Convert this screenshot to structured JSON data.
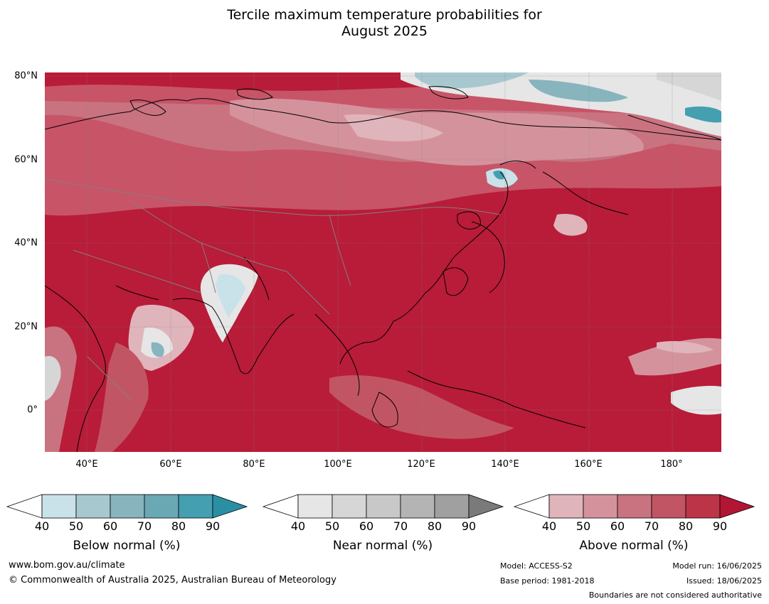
{
  "title_line1": "Tercile maximum temperature probabilities for",
  "title_line2": "August 2025",
  "lat_labels": [
    "80°N",
    "60°N",
    "40°N",
    "20°N",
    "0°"
  ],
  "lon_labels": [
    "40°E",
    "60°E",
    "80°E",
    "100°E",
    "120°E",
    "140°E",
    "160°E",
    "180°"
  ],
  "legends": [
    {
      "title": "Below normal (%)",
      "ticks": [
        "40",
        "50",
        "60",
        "70",
        "80",
        "90"
      ],
      "colors": [
        "#c9e1e8",
        "#a8c8cf",
        "#88b4be",
        "#6aa8b4",
        "#449fb0",
        "#2a8fa3"
      ]
    },
    {
      "title": "Near normal (%)",
      "ticks": [
        "40",
        "50",
        "60",
        "70",
        "80",
        "90"
      ],
      "colors": [
        "#e6e6e6",
        "#d6d6d6",
        "#c8c8c8",
        "#b4b4b4",
        "#a0a0a0",
        "#7a7a7a"
      ]
    },
    {
      "title": "Above normal (%)",
      "ticks": [
        "40",
        "50",
        "60",
        "70",
        "80",
        "90"
      ],
      "colors": [
        "#e0b4bb",
        "#d4939c",
        "#c97380",
        "#c25564",
        "#bb3448",
        "#b31535"
      ]
    }
  ],
  "footer": {
    "website": "www.bom.gov.au/climate",
    "copyright": "© Commonwealth of Australia 2025, Australian Bureau of Meteorology",
    "model": "Model: ACCESS-S2",
    "base_period": "Base period: 1981-2018",
    "model_run": "Model run: 16/06/2025",
    "issued": "Issued: 18/06/2025",
    "disclaimer": "Boundaries are not considered authoritative"
  }
}
